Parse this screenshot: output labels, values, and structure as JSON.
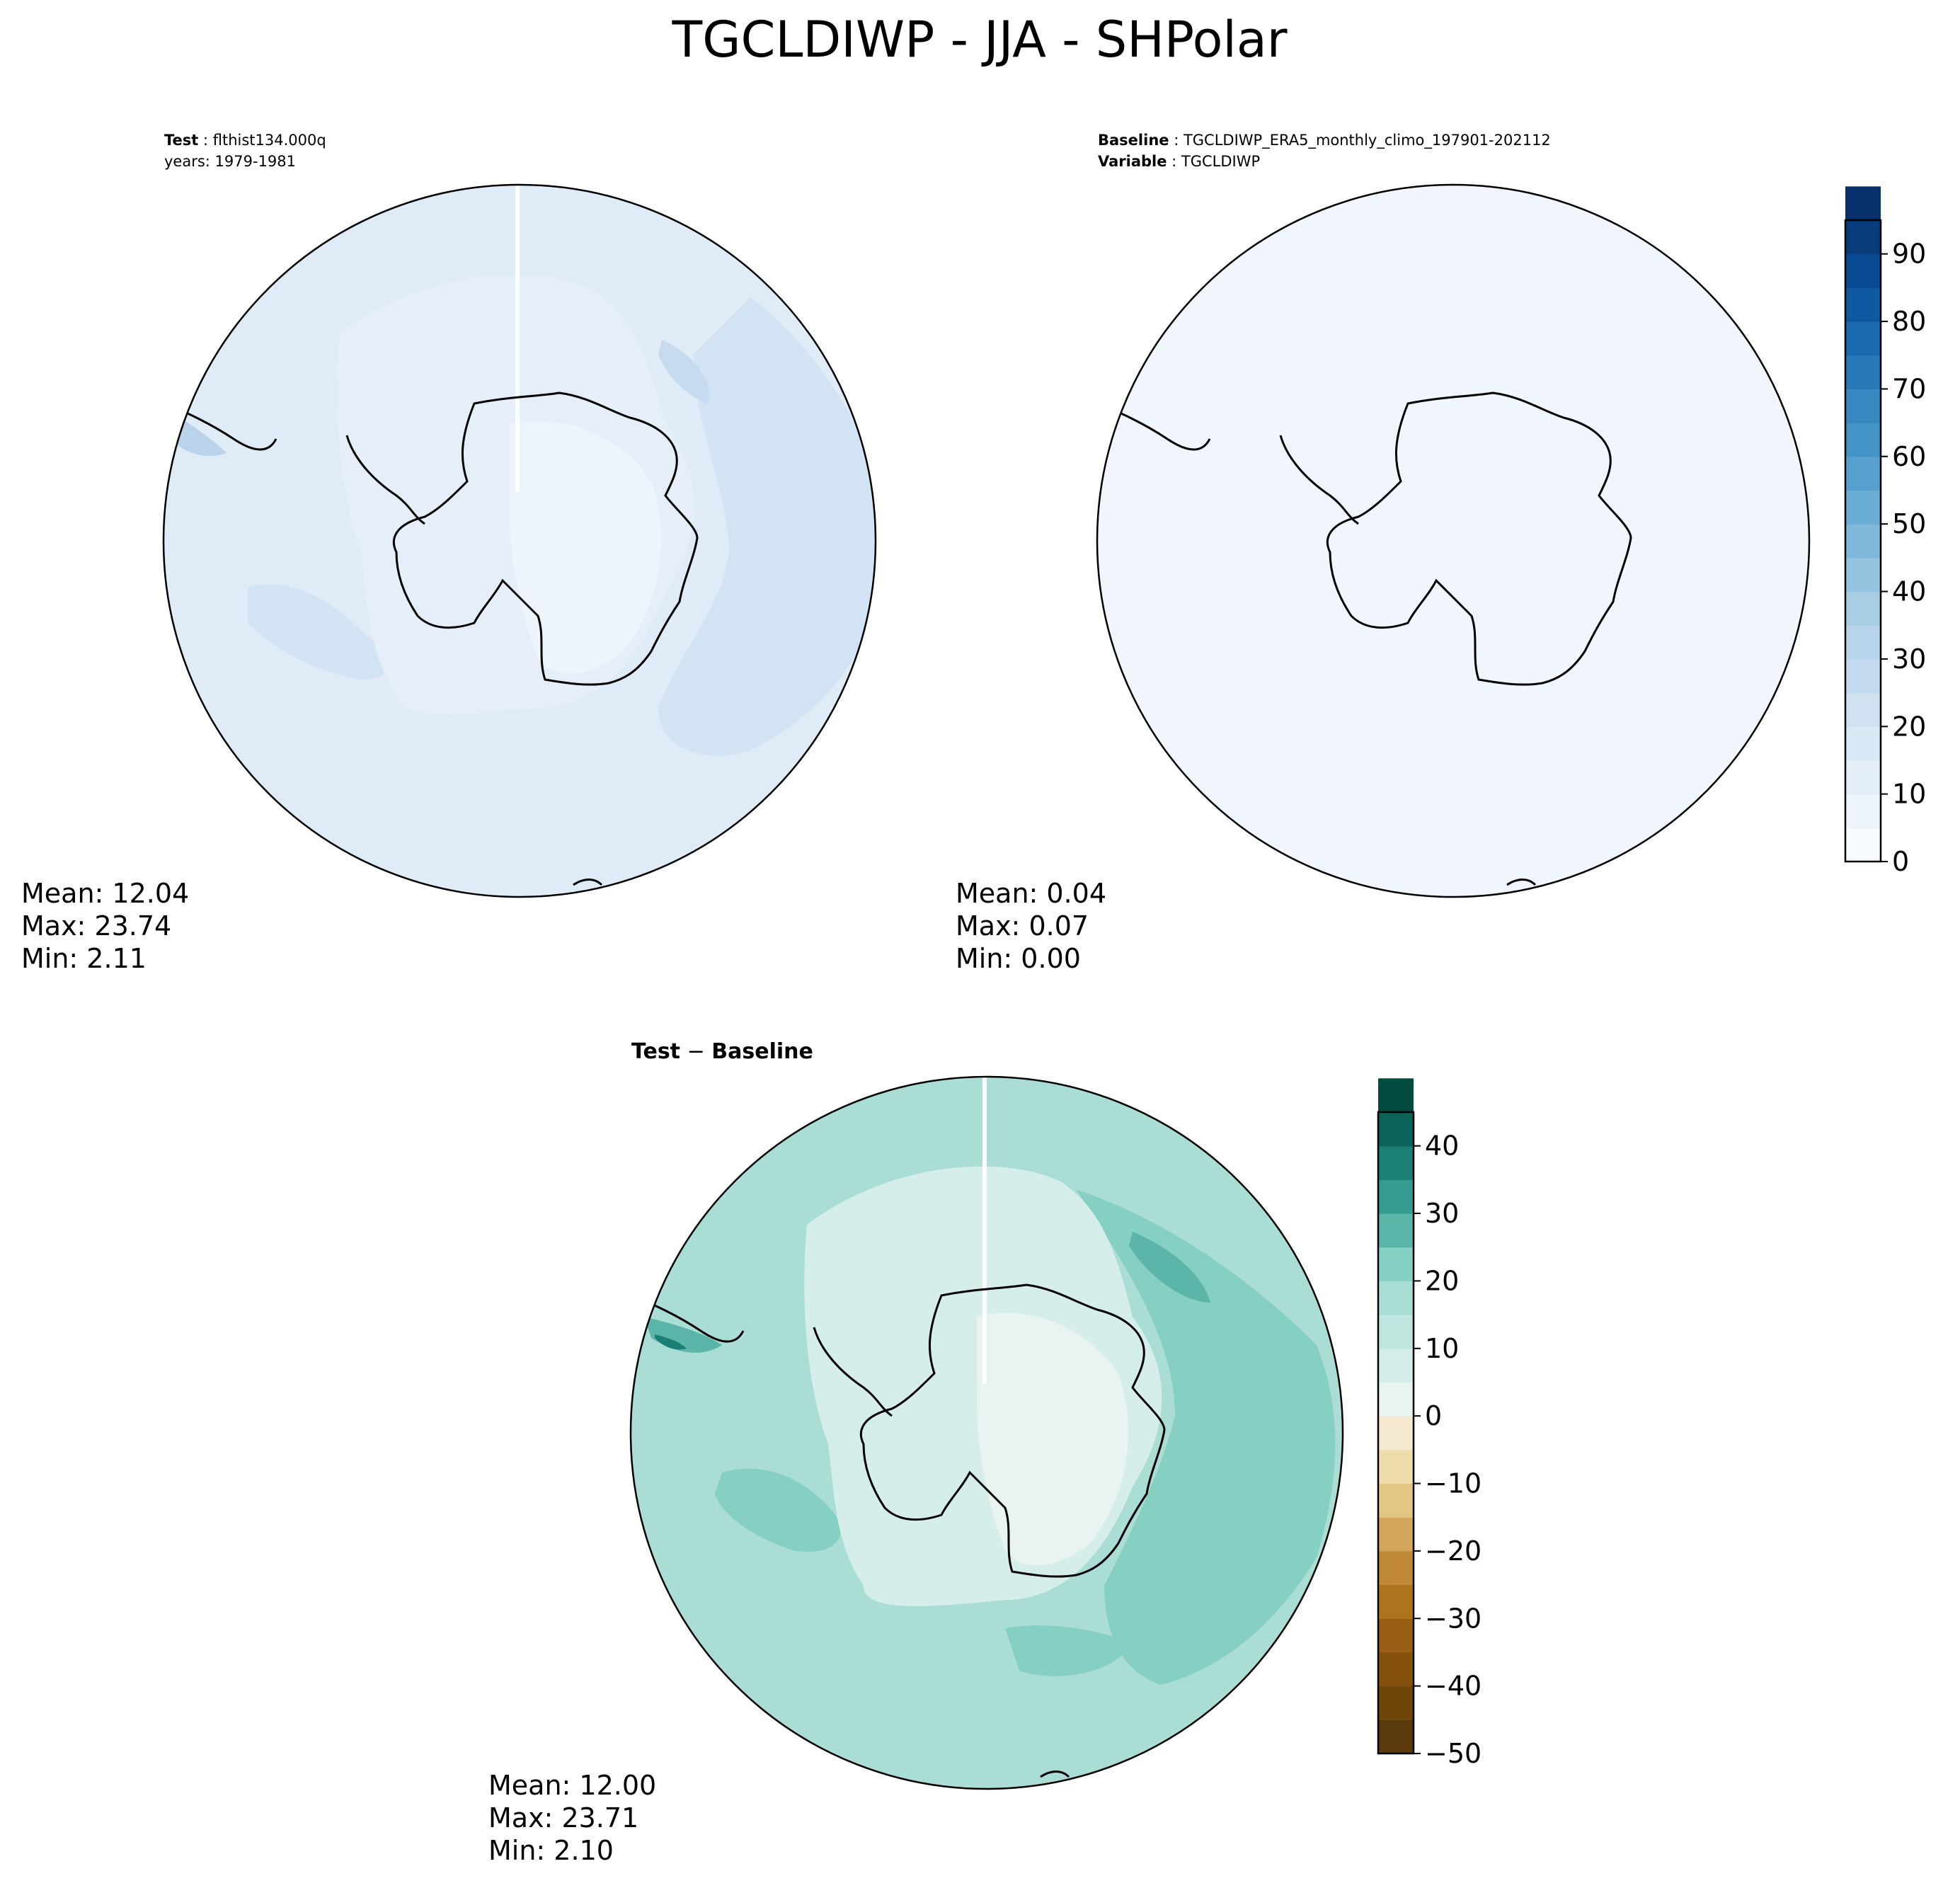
{
  "figure": {
    "title": "TGCLDIWP - JJA - SHPolar"
  },
  "chart_data": [
    {
      "type": "heatmap",
      "panel": "test",
      "projection": "south-polar-stereographic",
      "annotation": {
        "label_bold": "Test",
        "label_value": "flthist134.000q",
        "line2": "years: 1979-1981"
      },
      "colormap": "Blues",
      "levels_range": [
        0,
        95
      ],
      "field_description_values": [
        {
          "region": "ocean-background",
          "value": 12
        },
        {
          "region": "antarctic-continent-east",
          "value": 4
        },
        {
          "region": "antarctic-coastal-ring",
          "value": 8
        },
        {
          "region": "south-pacific-max",
          "value": 17
        },
        {
          "region": "indian-ocean-band",
          "value": 16
        },
        {
          "region": "drake-passage-max",
          "value": 23
        }
      ],
      "stats": {
        "mean_label": "Mean: 12.04",
        "max_label": "Max: 23.74",
        "min_label": "Min:  2.11",
        "mean": 12.04,
        "max": 23.74,
        "min": 2.11
      }
    },
    {
      "type": "heatmap",
      "panel": "baseline",
      "projection": "south-polar-stereographic",
      "annotation": {
        "line1_bold": "Baseline",
        "line1_value": "TGCLDIWP_ERA5_monthly_climo_197901-202112",
        "line2_bold": "Variable",
        "line2_value": "TGCLDIWP"
      },
      "colormap": "Blues",
      "levels_range": [
        0,
        95
      ],
      "stats": {
        "mean_label": "Mean:  0.04",
        "max_label": "Max:  0.07",
        "min_label": "Min:  0.00",
        "mean": 0.04,
        "max": 0.07,
        "min": 0.0
      },
      "colorbar": {
        "cmap": "Blues",
        "range": [
          0,
          95
        ],
        "bin_width": 5,
        "ticks": [
          0,
          10,
          20,
          30,
          40,
          50,
          60,
          70,
          80,
          90
        ],
        "tick_labels": [
          "0",
          "10",
          "20",
          "30",
          "40",
          "50",
          "60",
          "70",
          "80",
          "90"
        ],
        "colors": [
          "#f7fbff",
          "#edf4fc",
          "#e3eef9",
          "#d9e8f5",
          "#d0e1f2",
          "#c4daee",
          "#b7d4ea",
          "#a8cee4",
          "#94c4df",
          "#7fb8da",
          "#6aaed6",
          "#58a1cf",
          "#4594c7",
          "#3787c0",
          "#2979b9",
          "#1b6aaf",
          "#0e59a2",
          "#084b93",
          "#083c7d",
          "#08306b"
        ]
      }
    },
    {
      "type": "heatmap",
      "panel": "difference",
      "projection": "south-polar-stereographic",
      "title_left": "Test",
      "title_op": " − ",
      "title_right": "Baseline",
      "colormap": "BrBG",
      "levels_range": [
        -50,
        45
      ],
      "stats": {
        "mean_label": "Mean: 12.00",
        "max_label": "Max: 23.71",
        "min_label": "Min:  2.10",
        "mean": 12.0,
        "max": 23.71,
        "min": 2.1
      },
      "colorbar": {
        "cmap": "BrBG",
        "range": [
          -50,
          45
        ],
        "bin_width": 5,
        "ticks": [
          -50,
          -40,
          -30,
          -20,
          -10,
          0,
          10,
          20,
          30,
          40
        ],
        "tick_labels": [
          "−50",
          "−40",
          "−30",
          "−20",
          "−10",
          "0",
          "10",
          "20",
          "30",
          "40"
        ],
        "colors": [
          "#5b3a0c",
          "#6f4509",
          "#84510d",
          "#985f14",
          "#ad731e",
          "#c08937",
          "#d3a65b",
          "#e3c685",
          "#efdcab",
          "#f5ead0",
          "#e9f3f1",
          "#d5eeea",
          "#bfe7e0",
          "#a8ddd4",
          "#86cfc3",
          "#5cb5a9",
          "#369c90",
          "#1b7f75",
          "#0c6359",
          "#004a3f"
        ]
      }
    }
  ]
}
